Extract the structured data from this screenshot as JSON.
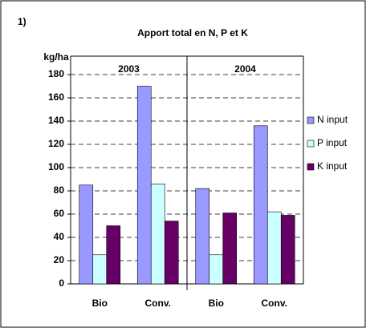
{
  "chart_data": {
    "type": "bar",
    "panel_label": "1)",
    "title": "Apport total en N, P et K",
    "y_label": "kg/ha",
    "group_labels": [
      "2003",
      "2004"
    ],
    "categories": [
      "Bio",
      "Conv.",
      "Bio",
      "Conv."
    ],
    "series": [
      {
        "name": "N input",
        "color": "#9999ff",
        "values": [
          85,
          170,
          82,
          136
        ]
      },
      {
        "name": "P input",
        "color": "#ccffff",
        "values": [
          25,
          86,
          25,
          62
        ]
      },
      {
        "name": "K input",
        "color": "#660066",
        "values": [
          50,
          54,
          61,
          59
        ]
      }
    ],
    "ylim": [
      0,
      180
    ],
    "yticks": [
      0,
      20,
      40,
      60,
      80,
      100,
      120,
      140,
      160,
      180
    ],
    "grid": true,
    "legend": "right"
  }
}
